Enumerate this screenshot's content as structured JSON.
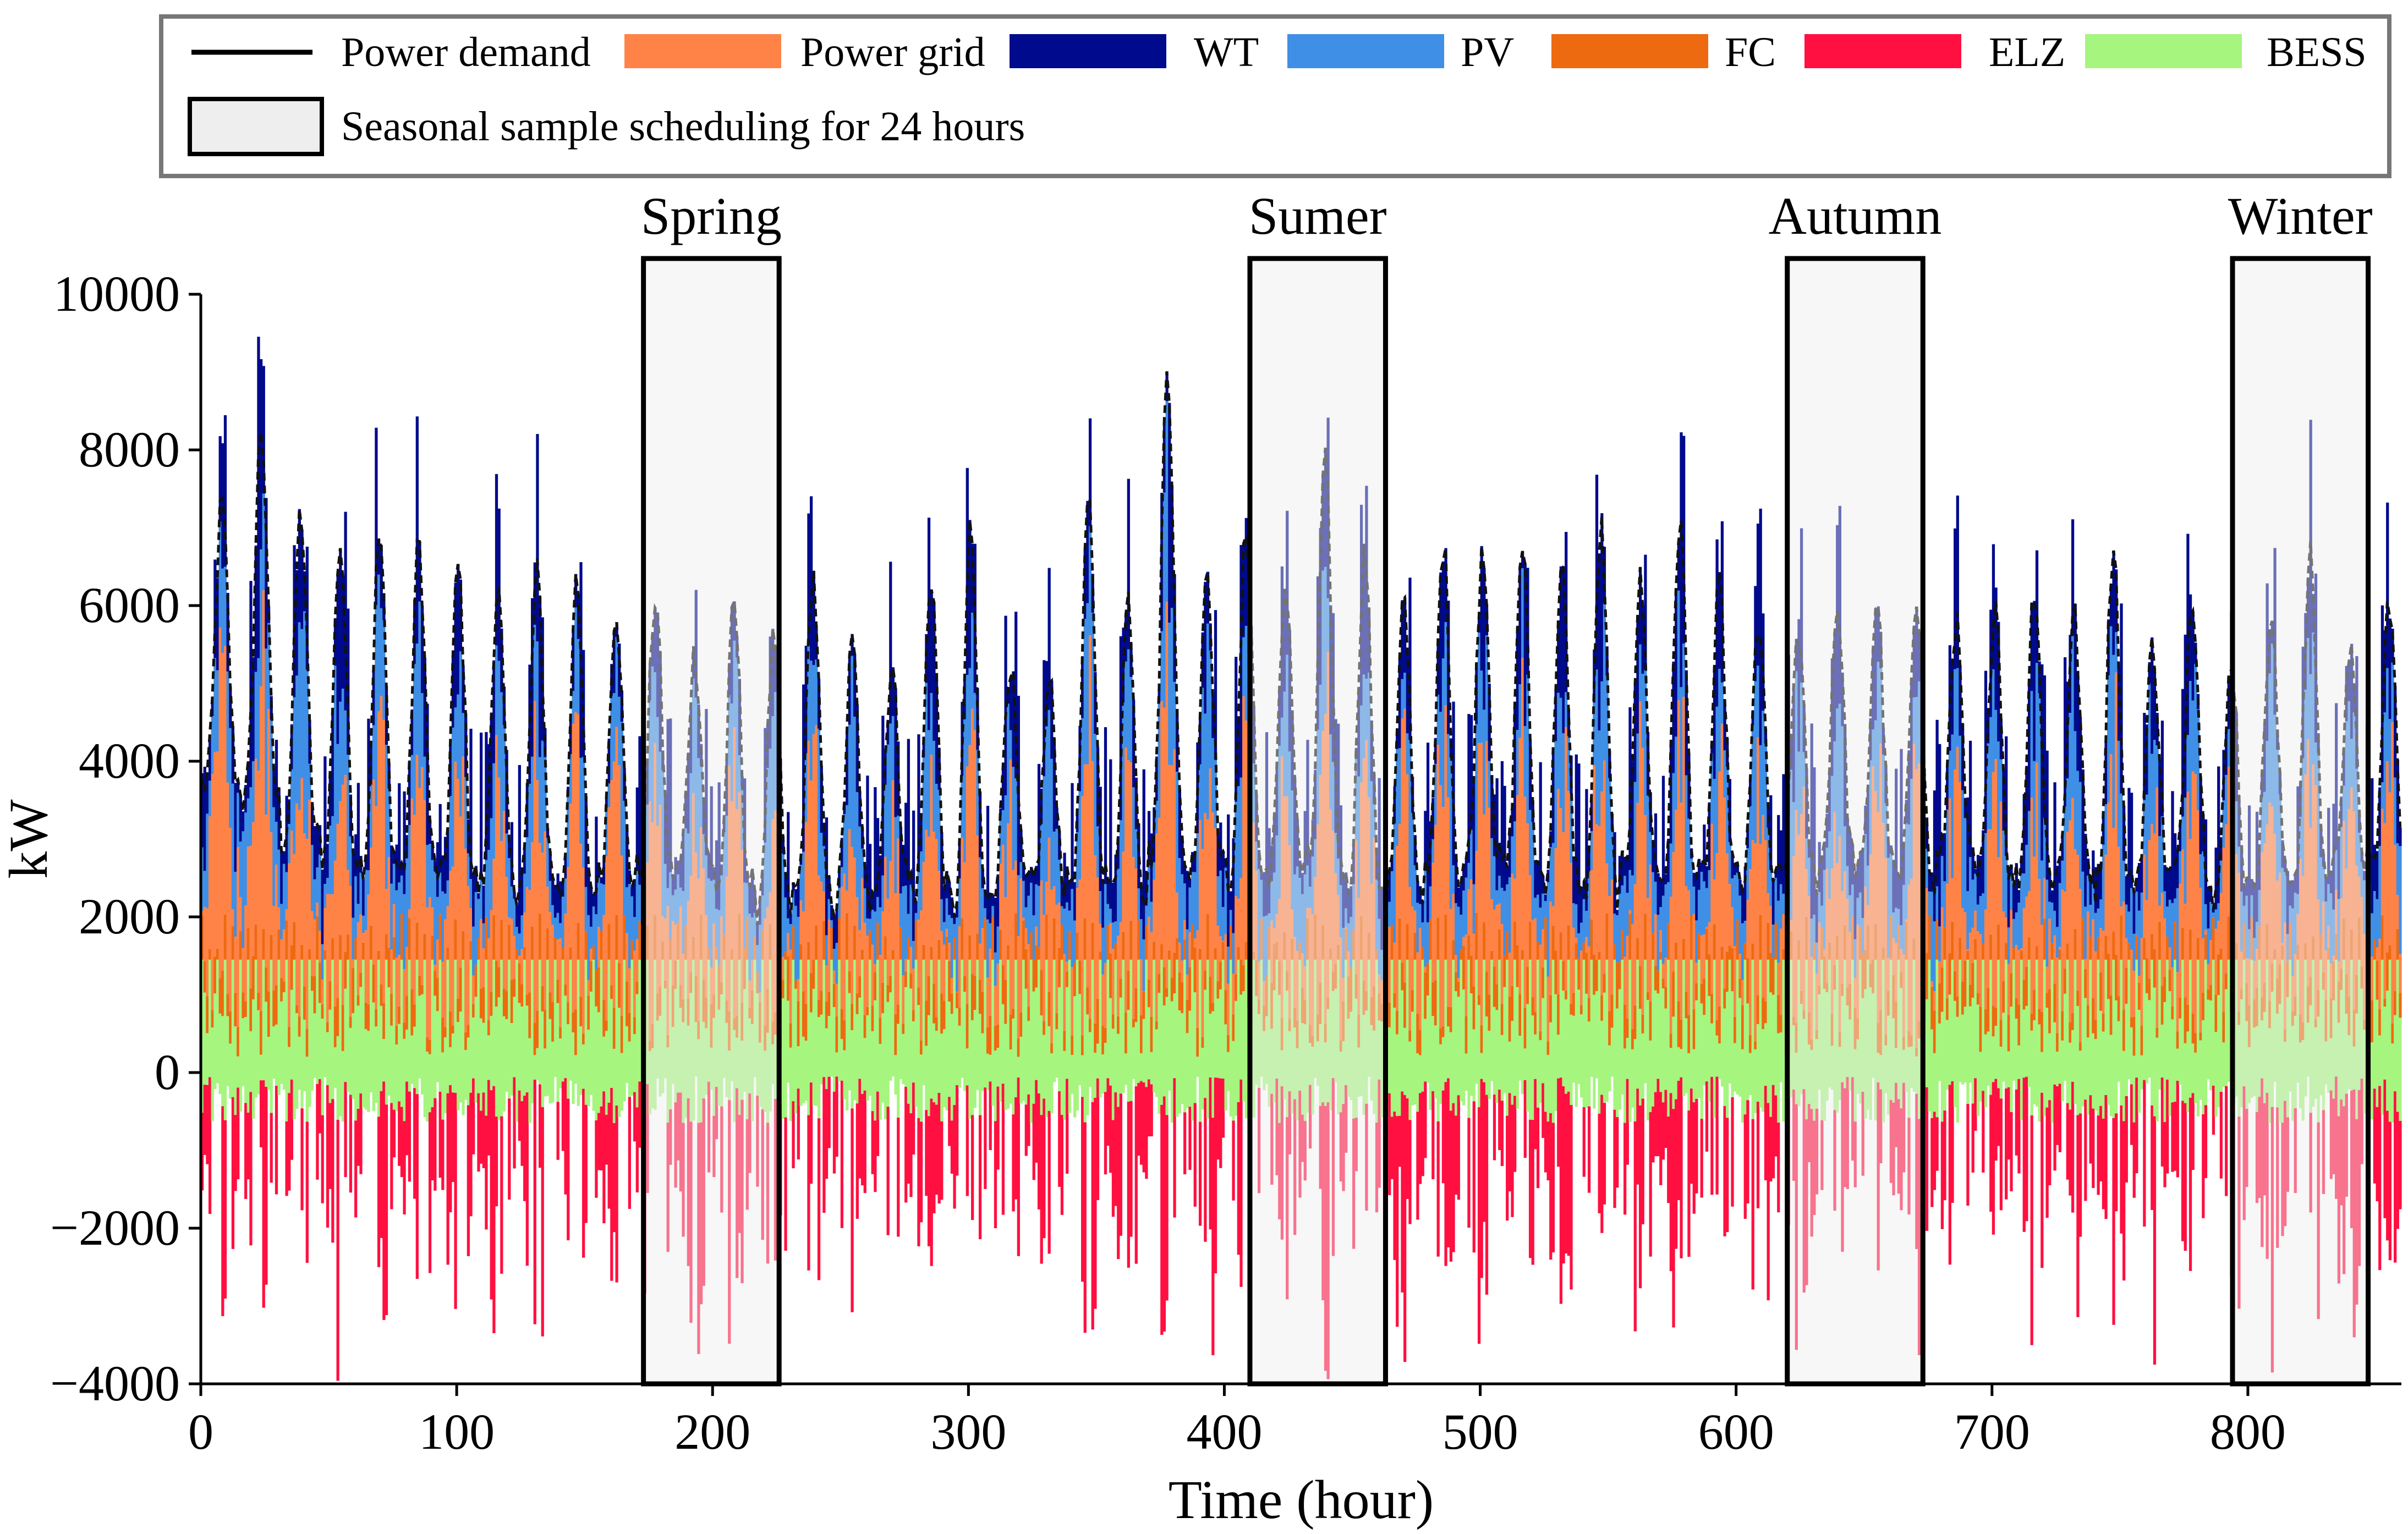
{
  "chart_data": {
    "type": "bar",
    "title": "",
    "xlabel": "Time (hour)",
    "ylabel": "kW",
    "xlim": [
      0,
      860
    ],
    "ylim": [
      -4000,
      10000
    ],
    "x_ticks": [
      0,
      100,
      200,
      300,
      400,
      500,
      600,
      700,
      800
    ],
    "y_ticks": [
      {
        "value": -4000,
        "label": "−4000"
      },
      {
        "value": -2000,
        "label": "−2000"
      },
      {
        "value": 0,
        "label": "0"
      },
      {
        "value": 2000,
        "label": "2000"
      },
      {
        "value": 4000,
        "label": "4000"
      },
      {
        "value": 6000,
        "label": "6000"
      },
      {
        "value": 8000,
        "label": "8000"
      },
      {
        "value": 10000,
        "label": "10000"
      }
    ],
    "grid": false,
    "legend_position": "top",
    "legend": [
      {
        "key": "demand",
        "label": "Power demand",
        "kind": "line",
        "color": "#000000"
      },
      {
        "key": "grid",
        "label": "Power grid",
        "kind": "patch",
        "color": "#FF8347"
      },
      {
        "key": "wt",
        "label": "WT",
        "kind": "patch",
        "color": "#000A8C"
      },
      {
        "key": "pv",
        "label": "PV",
        "kind": "patch",
        "color": "#3F8FE6"
      },
      {
        "key": "fc",
        "label": "FC",
        "kind": "patch",
        "color": "#EE6A10"
      },
      {
        "key": "elz",
        "label": "ELZ",
        "kind": "patch",
        "color": "#FF1040"
      },
      {
        "key": "bess",
        "label": "BESS",
        "kind": "patch",
        "color": "#A6F57F"
      },
      {
        "key": "season",
        "label": "Seasonal sample scheduling for 24 hours",
        "kind": "box",
        "color": "#EEEEEE"
      }
    ],
    "seasons": [
      {
        "label": "Spring",
        "start": 173,
        "end": 226
      },
      {
        "label": "Sumer",
        "start": 410,
        "end": 463
      },
      {
        "label": "Autumn",
        "start": 620,
        "end": 673
      },
      {
        "label": "Winter",
        "start": 794,
        "end": 847
      }
    ],
    "series_summary": {
      "hours": 860,
      "power_demand_range_kW": [
        1600,
        9200
      ],
      "power_grid_typical_kW": [
        1300,
        5800
      ],
      "bess_range_kW": [
        -700,
        1450
      ],
      "fc_typical_kW": [
        0,
        700
      ],
      "elz_min_kW": -4000,
      "peak_supply_kW": 9200
    },
    "demand_profile": {
      "daily_peaks_kW": [
        7300,
        8300,
        7200,
        6800,
        6900,
        6800,
        6500,
        6200,
        6400,
        6200,
        6000,
        6100,
        5400,
        6000,
        5500,
        6400,
        5500,
        5200,
        6400,
        6900,
        5300,
        5000,
        7300,
        6100,
        9100,
        6500,
        7000,
        6300,
        7800,
        6700,
        6000,
        6800,
        6800,
        6800,
        6500,
        7000,
        6300,
        7100,
        6200,
        5800,
        5700,
        6000,
        6100,
        6200,
        5800,
        6100,
        6300,
        5900,
        6800,
        5500,
        6200,
        5300,
        5800,
        6600,
        5400,
        6100
      ],
      "daily_base_kW": [
        3700,
        3500,
        3000,
        2800,
        2700,
        2600,
        2500,
        2400,
        2500,
        2300,
        2500,
        2600,
        2600,
        2400,
        2100,
        2300,
        2200,
        2500,
        2300,
        2100,
        2400,
        2400,
        2500,
        2300,
        2800,
        2600,
        2500,
        2600,
        2700,
        2400,
        2400,
        2500,
        2700,
        2600,
        2500,
        2300,
        2600,
        2500,
        2500,
        2400,
        2500,
        2700,
        2600,
        2400,
        2700,
        2500,
        2500,
        2600,
        2400,
        2500,
        2600,
        2300,
        2600,
        2500,
        2700,
        2600
      ]
    }
  }
}
